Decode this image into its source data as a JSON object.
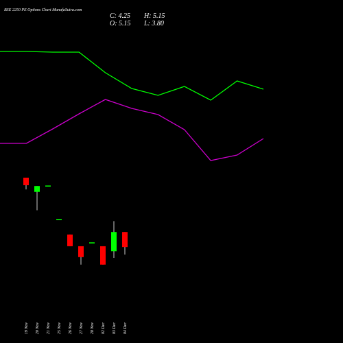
{
  "chart_data": {
    "type": "candlestick",
    "title": "BSE 2250 PE Options Chart MunafaSutra.com",
    "info": [
      "C: 4.25",
      "H: 5.15",
      "O: 5.15",
      "L: 3.80"
    ],
    "categories": [
      "19 Nov",
      "20 Nov",
      "21 Nov",
      "25 Nov",
      "26 Nov",
      "27 Nov",
      "28 Nov",
      "02 Dec",
      "03 Dec",
      "04 Dec"
    ],
    "open": [
      8.4,
      7.55,
      7.9,
      5.9,
      5.0,
      4.3,
      4.5,
      4.3,
      4.0,
      5.15
    ],
    "high": [
      8.4,
      7.9,
      7.9,
      5.9,
      5.0,
      4.3,
      4.5,
      4.3,
      5.8,
      5.15
    ],
    "low": [
      7.7,
      6.45,
      7.9,
      5.9,
      4.3,
      3.2,
      4.5,
      3.2,
      3.6,
      3.8
    ],
    "close": [
      7.95,
      7.9,
      7.9,
      5.9,
      4.3,
      3.65,
      4.5,
      3.2,
      5.15,
      4.25
    ],
    "up_color": "#00ff00",
    "down_color": "#ff0000",
    "ylim": [
      2,
      10
    ],
    "lines": {
      "x": [
        0,
        1,
        2,
        3,
        4,
        5,
        6,
        7,
        8,
        9,
        10
      ],
      "xlim": [
        0,
        10
      ],
      "y2lim": [
        0,
        100
      ],
      "series": [
        {
          "color": "#00ff00",
          "axis": "y2",
          "values": [
            82.5,
            82.5,
            82,
            82,
            67,
            55.5,
            50.5,
            57,
            47,
            61,
            55
          ]
        },
        {
          "color": "#cc00cc",
          "axis": "y2",
          "values": [
            15.5,
            15.5,
            26,
            37,
            47.5,
            41,
            36.5,
            25.5,
            3,
            7,
            19
          ]
        }
      ]
    }
  }
}
